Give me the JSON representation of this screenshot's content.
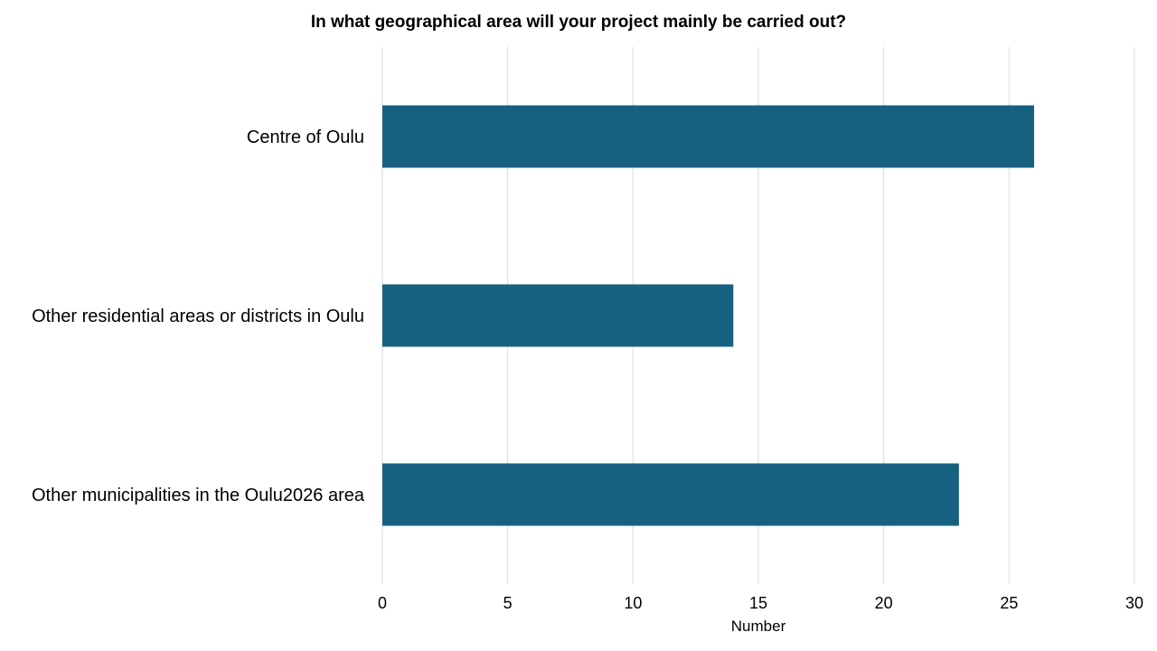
{
  "chart_data": {
    "type": "bar",
    "orientation": "horizontal",
    "title": "In what geographical area will your project mainly be carried out?",
    "xlabel": "Number",
    "ylabel": "",
    "categories": [
      "Centre of Oulu",
      "Other residential areas or districts in Oulu",
      "Other municipalities in the Oulu2026 area"
    ],
    "values": [
      26,
      14,
      23
    ],
    "xlim": [
      0,
      30
    ],
    "xticks": [
      0,
      5,
      10,
      15,
      20,
      25,
      30
    ],
    "grid": true,
    "legend": "none",
    "bar_color": "#17607f",
    "grid_color": "#d9d9d9"
  }
}
